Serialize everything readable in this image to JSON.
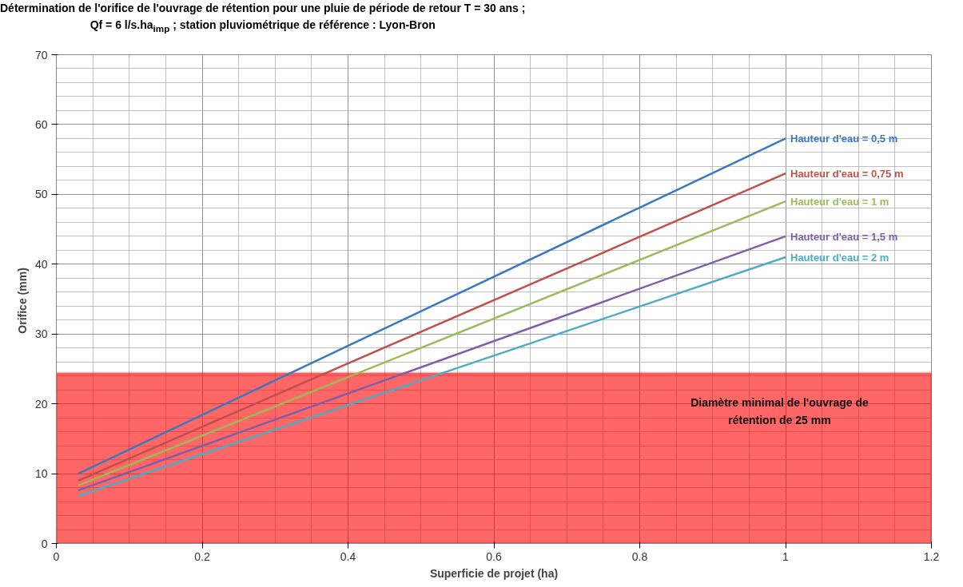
{
  "chart_data": {
    "type": "line",
    "title": "Détermination de l'orifice de l'ouvrage de rétention pour une pluie de période de retour T = 30 ans ;",
    "subtitle": "Qf = 6 l/s.ha$_{imp}$ ; station pluviométrique de référence : Lyon-Bron",
    "xlabel": "Superficie de projet (ha)",
    "ylabel": "Orifice  (mm)",
    "series": [
      {
        "name": "Hauteur d'eau = 0,5 m",
        "color": "#3a78c0",
        "values": [
          10,
          58
        ]
      },
      {
        "name": "Hauteur d'eau = 0,75 m",
        "color": "#c0504d",
        "values": [
          9,
          53
        ]
      },
      {
        "name": "Hauteur d'eau = 1 m",
        "color": "#9bbb59",
        "values": [
          8.3,
          49
        ]
      },
      {
        "name": "Hauteur d'eau = 1,5 m",
        "color": "#7f5fa8",
        "values": [
          7.6,
          44
        ]
      },
      {
        "name": "Hauteur d'eau = 2 m",
        "color": "#4bacc6",
        "values": [
          6.8,
          41
        ]
      }
    ],
    "bands": [
      {
        "axis": "y",
        "from": 0,
        "to": 24.4,
        "label": "Diamètre minimal de l'ouvrage de rétention de 25 mm",
        "color": "#ff0000"
      }
    ],
    "x": [
      0.03,
      1
    ],
    "xlim": [
      0,
      1.2
    ],
    "ylim": [
      0,
      70
    ],
    "xticks": [
      0,
      0.2,
      0.4,
      0.6,
      0.8,
      1,
      1.2
    ],
    "yticks": [
      0,
      10,
      20,
      30,
      40,
      50,
      60,
      70
    ],
    "grid": true,
    "legend": false,
    "line_style": "solid"
  }
}
